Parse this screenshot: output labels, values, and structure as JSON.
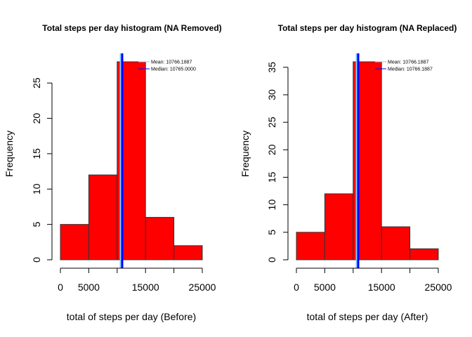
{
  "colors": {
    "bar_fill": "#ff0000",
    "bar_stroke": "#333333",
    "mean_line": "#87cefa",
    "median_line": "#0000ff",
    "axis": "#000000"
  },
  "chart_data": [
    {
      "type": "bar",
      "title": "Total steps per day histogram (NA Removed)",
      "xlabel": "total of steps per day (Before)",
      "ylabel": "Frequency",
      "bins": [
        [
          0,
          5000
        ],
        [
          5000,
          10000
        ],
        [
          10000,
          15000
        ],
        [
          15000,
          20000
        ],
        [
          20000,
          25000
        ]
      ],
      "values": [
        5,
        12,
        28,
        6,
        2
      ],
      "xlim": [
        0,
        25000
      ],
      "ylim": [
        0,
        28
      ],
      "x_ticks": [
        0,
        5000,
        10000,
        15000,
        20000,
        25000
      ],
      "x_tick_labels": [
        "0",
        "5000",
        "",
        "15000",
        "",
        "25000"
      ],
      "y_ticks": [
        0,
        5,
        10,
        15,
        20,
        25
      ],
      "y_tick_labels": [
        "0",
        "5",
        "10",
        "15",
        "20",
        "25"
      ],
      "mean": 10766.1887,
      "median": 10765,
      "legend": [
        "Mean: 10766.1887",
        "Median: 10765.0000"
      ],
      "legend_position": "top-right",
      "grid": false
    },
    {
      "type": "bar",
      "title": "Total steps per day histogram (NA Replaced)",
      "xlabel": "total of steps per day (After)",
      "ylabel": "Frequency",
      "bins": [
        [
          0,
          5000
        ],
        [
          5000,
          10000
        ],
        [
          10000,
          15000
        ],
        [
          15000,
          20000
        ],
        [
          20000,
          25000
        ]
      ],
      "values": [
        5,
        12,
        36,
        6,
        2
      ],
      "xlim": [
        0,
        25000
      ],
      "ylim": [
        0,
        36
      ],
      "x_ticks": [
        0,
        5000,
        10000,
        15000,
        20000,
        25000
      ],
      "x_tick_labels": [
        "0",
        "5000",
        "",
        "15000",
        "",
        "25000"
      ],
      "y_ticks": [
        0,
        5,
        10,
        15,
        20,
        25,
        30,
        35
      ],
      "y_tick_labels": [
        "0",
        "5",
        "10",
        "15",
        "20",
        "25",
        "30",
        "35"
      ],
      "mean": 10766.1887,
      "median": 10766.1887,
      "legend": [
        "Mean: 10766.1887",
        "Median: 10766.1887"
      ],
      "legend_position": "top-right",
      "grid": false
    }
  ]
}
